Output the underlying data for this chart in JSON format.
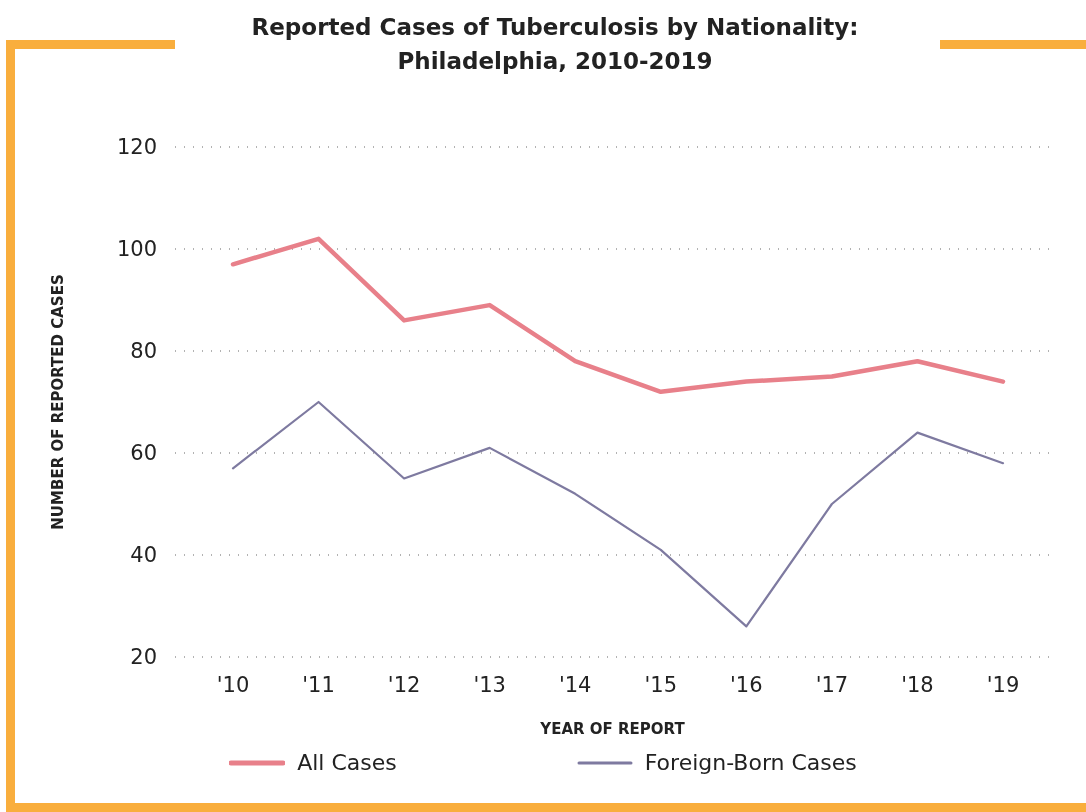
{
  "chart_data": {
    "type": "line",
    "title": "Reported Cases of Tuberculosis by Nationality: Philadelphia, 2010-2019",
    "xlabel": "YEAR OF REPORT",
    "ylabel": "NUMBER OF REPORTED CASES",
    "categories": [
      "'10",
      "'11",
      "'12",
      "'13",
      "'14",
      "'15",
      "'16",
      "'17",
      "'18",
      "'19"
    ],
    "series": [
      {
        "name": "All Cases",
        "color": "#e8808a",
        "values": [
          97,
          102,
          86,
          89,
          78,
          72,
          74,
          75,
          78,
          74
        ]
      },
      {
        "name": "Foreign-Born Cases",
        "color": "#7e7aa0",
        "values": [
          57,
          70,
          55,
          61,
          52,
          41,
          26,
          50,
          64,
          58
        ]
      }
    ],
    "ylim": [
      20,
      120
    ],
    "yticks": [
      20,
      40,
      60,
      80,
      100,
      120
    ],
    "grid": "y",
    "legend": "bottom",
    "marker": "none",
    "line_style": "solid"
  }
}
